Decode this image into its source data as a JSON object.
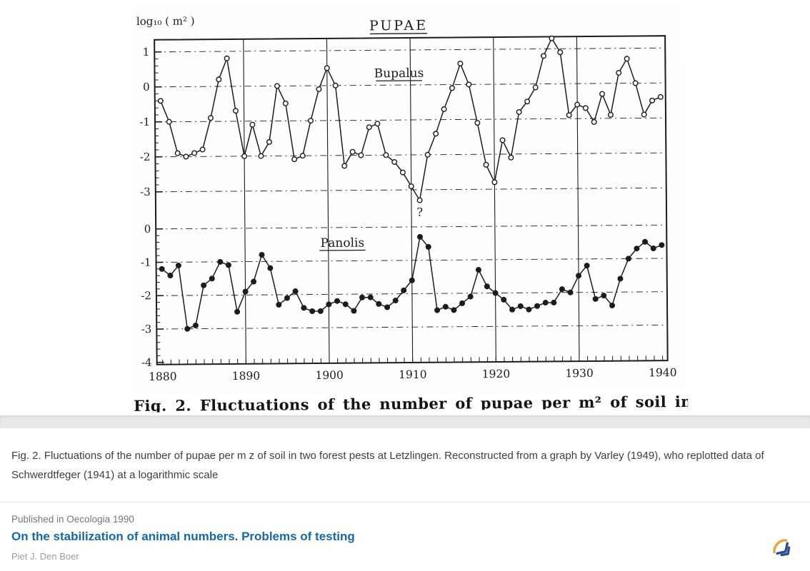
{
  "colors": {
    "ink": "#1c1c1c",
    "link_blue": "#1668a9",
    "logo_blue": "#2b4d8e",
    "logo_orange": "#e8a33d",
    "band_gray": "#e9e9e9"
  },
  "figure_scan": {
    "clipped_caption": "Fig. 2. Fluctuations of the number of pupae per m² of soil in"
  },
  "caption": "Fig. 2. Fluctuations of the number of pupae per m z of soil in two forest pests at Letzlingen. Reconstructed from a graph by Varley (1949), who replotted data of Schwerdtfeger (1941) at a logarithmic scale",
  "publication": {
    "published_in": "Published in Oecologia 1990",
    "title": "On the stabilization of animal numbers. Problems of testing",
    "authors": "Piet J. Den Boer"
  },
  "chart_data": {
    "type": "line",
    "title": "PUPAE",
    "ylabel": "log₁₀ ( m² )",
    "xlabel": "",
    "x_range": [
      1880,
      1940
    ],
    "x_step": 1,
    "x_ticks": [
      1880,
      1890,
      1900,
      1910,
      1920,
      1930,
      1940
    ],
    "x_gridlines": [
      1890,
      1900,
      1910,
      1920,
      1930
    ],
    "grid": "dash-dot horizontal at integer levels, solid vertical at decades",
    "annotation": {
      "text": "?",
      "x": 1911,
      "y": -3.75,
      "panel": 0
    },
    "panels": [
      {
        "name": "Bupalus",
        "marker": "open",
        "ylim": [
          -3.6,
          1.4
        ],
        "yticks": [
          1,
          0,
          -1,
          -2,
          -3
        ],
        "values": [
          -0.4,
          -1.0,
          -1.9,
          -2.0,
          -1.9,
          -1.8,
          -0.9,
          0.2,
          0.8,
          -0.7,
          -2.0,
          -1.1,
          -2.0,
          -1.6,
          0.0,
          -0.5,
          -2.1,
          -2.0,
          -1.0,
          -0.1,
          0.5,
          0.0,
          -2.3,
          -1.9,
          -2.0,
          -1.2,
          -1.1,
          -2.0,
          -2.2,
          -2.5,
          -2.9,
          -3.3,
          -2.0,
          -1.4,
          -0.7,
          -0.1,
          0.6,
          0.0,
          -1.1,
          -2.3,
          -2.8,
          -1.6,
          -2.1,
          -0.8,
          -0.5,
          -0.1,
          0.8,
          1.3,
          0.9,
          -0.9,
          -0.6,
          -0.7,
          -1.1,
          -0.3,
          -0.9,
          0.3,
          0.7,
          0.0,
          -0.9,
          -0.5,
          -0.4
        ]
      },
      {
        "name": "Panolis",
        "marker": "filled",
        "ylim": [
          -4.1,
          0.3
        ],
        "yticks": [
          0,
          -1,
          -2,
          -3,
          -4
        ],
        "values": [
          -1.2,
          -1.4,
          -1.1,
          -3.0,
          -2.9,
          -1.7,
          -1.5,
          -1.0,
          -1.1,
          -2.5,
          -1.9,
          -1.6,
          -0.8,
          -1.2,
          -2.3,
          -2.1,
          -1.9,
          -2.4,
          -2.5,
          -2.5,
          -2.3,
          -2.2,
          -2.3,
          -2.5,
          -2.1,
          -2.1,
          -2.3,
          -2.4,
          -2.2,
          -1.9,
          -1.6,
          -0.3,
          -0.6,
          -2.5,
          -2.4,
          -2.5,
          -2.3,
          -2.1,
          -1.3,
          -1.8,
          -2.0,
          -2.2,
          -2.5,
          -2.4,
          -2.5,
          -2.4,
          -2.3,
          -2.3,
          -1.9,
          -2.0,
          -1.5,
          -1.2,
          -2.2,
          -2.1,
          -2.4,
          -1.6,
          -1.0,
          -0.7,
          -0.5,
          -0.7,
          -0.6
        ]
      }
    ]
  }
}
